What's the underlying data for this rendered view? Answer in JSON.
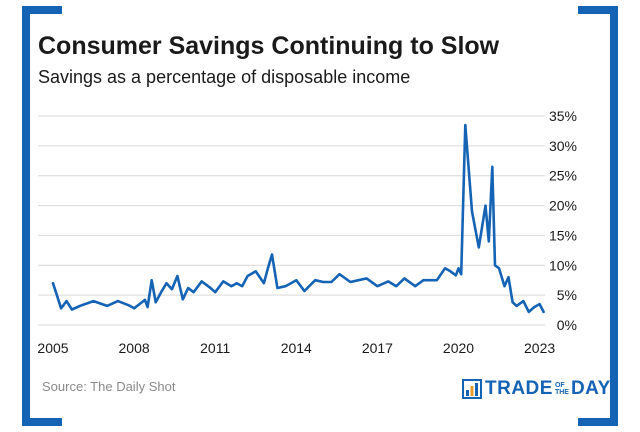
{
  "header": {
    "title": "Consumer Savings Continuing to Slow",
    "subtitle": "Savings as a percentage of disposable income"
  },
  "footer": {
    "source": "Source: The Daily Shot",
    "brand": {
      "trade": "TRADE",
      "of": "OF",
      "the": "THE",
      "day": "DAY"
    }
  },
  "colors": {
    "frame": "#1463b5",
    "line": "#1463b5",
    "grid": "#d9d9d9"
  },
  "icons": {
    "brand": "bar-chart-icon"
  },
  "chart_data": {
    "type": "line",
    "title": "Consumer Savings Continuing to Slow",
    "subtitle": "Savings as a percentage of disposable income",
    "xlabel": "",
    "ylabel": "",
    "xlim": [
      2005.0,
      2023.2
    ],
    "ylim": [
      0,
      35
    ],
    "x_ticks": [
      2005,
      2008,
      2011,
      2014,
      2017,
      2020,
      2023
    ],
    "x_tick_labels": [
      "2005",
      "2008",
      "2011",
      "2014",
      "2017",
      "2020",
      "2023"
    ],
    "y_ticks": [
      0,
      5,
      10,
      15,
      20,
      25,
      30,
      35
    ],
    "y_tick_labels": [
      "0%",
      "5%",
      "10%",
      "15%",
      "20%",
      "25%",
      "30%",
      "35%"
    ],
    "y_axis_side": "right",
    "grid": "horizontal",
    "legend": "none",
    "x": [
      2005.0,
      2005.3,
      2005.5,
      2005.7,
      2006.0,
      2006.5,
      2007.0,
      2007.4,
      2007.8,
      2008.0,
      2008.2,
      2008.4,
      2008.5,
      2008.65,
      2008.8,
      2009.0,
      2009.2,
      2009.4,
      2009.6,
      2009.8,
      2010.0,
      2010.2,
      2010.5,
      2010.8,
      2011.0,
      2011.3,
      2011.6,
      2011.8,
      2012.0,
      2012.2,
      2012.5,
      2012.8,
      2012.95,
      2013.1,
      2013.3,
      2013.6,
      2014.0,
      2014.3,
      2014.7,
      2015.0,
      2015.3,
      2015.6,
      2016.0,
      2016.3,
      2016.6,
      2017.0,
      2017.4,
      2017.7,
      2018.0,
      2018.4,
      2018.7,
      2019.0,
      2019.2,
      2019.5,
      2019.7,
      2019.9,
      2020.0,
      2020.1,
      2020.25,
      2020.5,
      2020.75,
      2021.0,
      2021.12,
      2021.25,
      2021.35,
      2021.5,
      2021.7,
      2021.85,
      2022.0,
      2022.15,
      2022.4,
      2022.6,
      2022.8,
      2023.0,
      2023.15
    ],
    "values": [
      7.0,
      2.8,
      4.0,
      2.6,
      3.2,
      4.0,
      3.2,
      4.0,
      3.3,
      2.8,
      3.5,
      4.2,
      3.0,
      7.5,
      3.8,
      5.5,
      7.0,
      6.0,
      8.2,
      4.3,
      6.2,
      5.5,
      7.3,
      6.3,
      5.5,
      7.3,
      6.5,
      7.0,
      6.5,
      8.2,
      9.0,
      7.0,
      9.5,
      11.8,
      6.2,
      6.5,
      7.5,
      5.7,
      7.5,
      7.2,
      7.2,
      8.5,
      7.2,
      7.5,
      7.8,
      6.5,
      7.3,
      6.5,
      7.8,
      6.5,
      7.5,
      7.5,
      7.5,
      9.5,
      9.0,
      8.3,
      9.5,
      8.5,
      33.5,
      19.0,
      13.0,
      20.0,
      14.0,
      26.5,
      10.0,
      9.5,
      6.5,
      8.0,
      3.8,
      3.2,
      4.0,
      2.2,
      3.0,
      3.5,
      2.2
    ]
  }
}
